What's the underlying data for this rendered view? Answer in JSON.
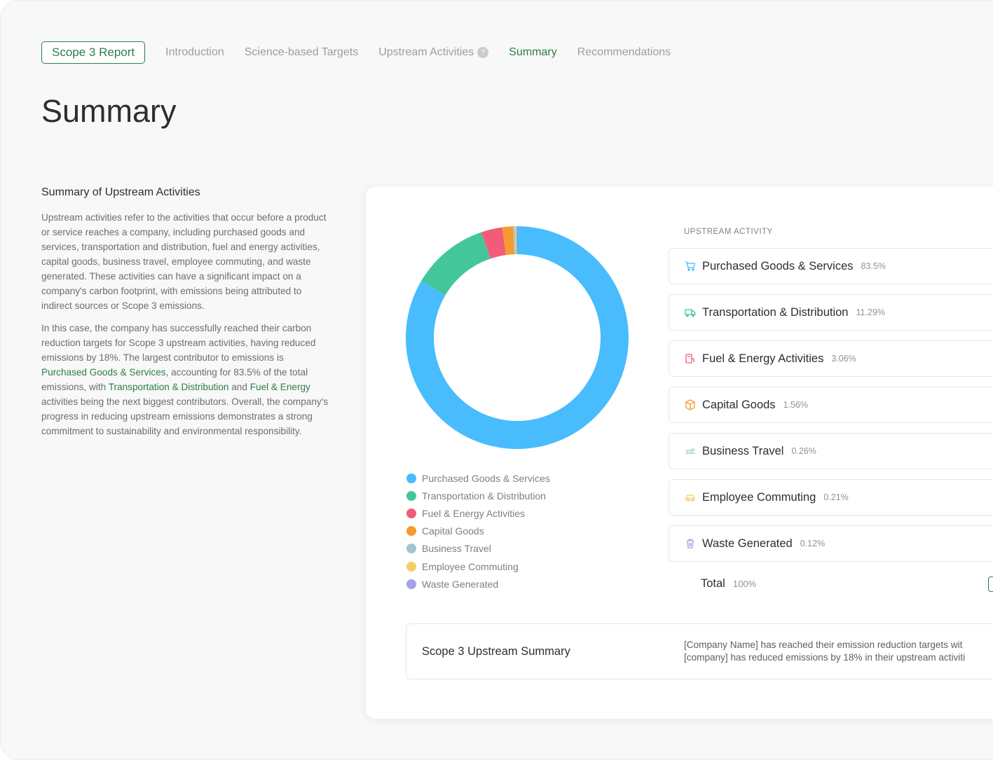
{
  "nav": {
    "brand": "Scope 3 Report",
    "tabs": [
      {
        "label": "Introduction"
      },
      {
        "label": "Science-based Targets"
      },
      {
        "label": "Upstream Activities",
        "badge": "?"
      },
      {
        "label": "Summary"
      },
      {
        "label": "Recommendations"
      }
    ],
    "active_tab": "Summary"
  },
  "page_title": "Summary",
  "left": {
    "heading": "Summary of Upstream Activities",
    "p1": "Upstream activities refer to the activities that occur before a product or service reaches a company, including purchased goods and services, transportation and distribution, fuel and energy activities, capital goods, business travel, employee commuting, and waste generated. These activities can have a significant impact on a company's carbon footprint, with emissions being attributed to indirect sources or Scope 3 emissions.",
    "p2": {
      "t1": "In this case, the company has successfully reached their carbon reduction targets for Scope 3 upstream activities, having reduced emissions by 18%. The largest contributor to emissions is ",
      "h1": "Purchased Goods & Services",
      "t2": ", accounting for 83.5% of the total emissions, with ",
      "h2": "Transportation & Distribution",
      "t3": " and ",
      "h3": "Fuel & Energy",
      "t4": " activities being the next biggest contributors. Overall, the company's progress in reducing upstream emissions demonstrates a strong commitment to sustainability and environmental responsibility."
    }
  },
  "chart_data": {
    "type": "pie",
    "categories": [
      "Purchased Goods & Services",
      "Transportation & Distribution",
      "Fuel & Energy Activities",
      "Capital Goods",
      "Business Travel",
      "Employee Commuting",
      "Waste Generated"
    ],
    "values": [
      83.5,
      11.29,
      3.06,
      1.56,
      0.26,
      0.21,
      0.12
    ],
    "colors": [
      "#48bcfd",
      "#43c79a",
      "#f25c78",
      "#f59b2f",
      "#9fc7cf",
      "#f8cc66",
      "#a4a0ea"
    ],
    "legend_position": "bottom"
  },
  "activity": {
    "header": "UPSTREAM ACTIVITY",
    "rows": [
      {
        "name": "Purchased Goods & Services",
        "pct": "83.5%",
        "icon": "cart-icon",
        "icon_color": "#48bcfd"
      },
      {
        "name": "Transportation & Distribution",
        "pct": "11.29%",
        "icon": "truck-icon",
        "icon_color": "#43c79a"
      },
      {
        "name": "Fuel & Energy Activities",
        "pct": "3.06%",
        "icon": "fuel-pump-icon",
        "icon_color": "#f25c78"
      },
      {
        "name": "Capital Goods",
        "pct": "1.56%",
        "icon": "box-icon",
        "icon_color": "#f59b2f"
      },
      {
        "name": "Business Travel",
        "pct": "0.26%",
        "icon": "airplane-icon",
        "icon_color": "#9fc7cf"
      },
      {
        "name": "Employee Commuting",
        "pct": "0.21%",
        "icon": "car-icon",
        "icon_color": "#f8cc66"
      },
      {
        "name": "Waste Generated",
        "pct": "0.12%",
        "icon": "trash-icon",
        "icon_color": "#a4a0ea"
      }
    ],
    "total_label": "Total",
    "total_pct": "100%"
  },
  "summary": {
    "title": "Scope 3 Upstream Summary",
    "line1": "[Company Name] has reached their emission reduction targets wit",
    "line2": "[company] has reduced emissions by 18% in their upstream activiti"
  }
}
